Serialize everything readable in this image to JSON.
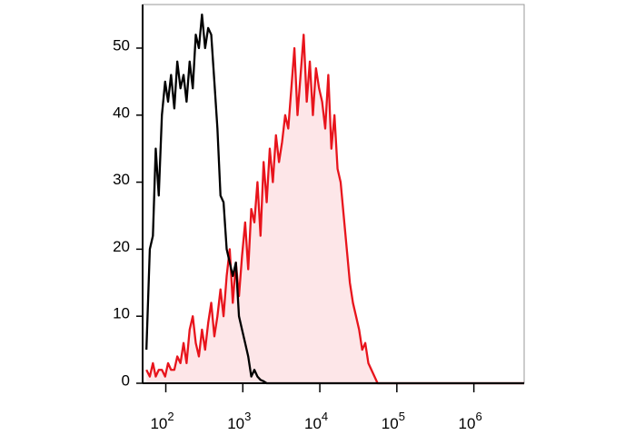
{
  "chart_data": {
    "type": "histogram-line",
    "log_x": true,
    "x": [
      56,
      62,
      68,
      74,
      81,
      89,
      98,
      107,
      117,
      129,
      141,
      155,
      170,
      186,
      204,
      224,
      245,
      269,
      295,
      324,
      355,
      389,
      427,
      468,
      513,
      562,
      617,
      676,
      741,
      813,
      891,
      977,
      1072,
      1175,
      1288,
      1413,
      1549,
      1698,
      1862,
      2042,
      2239,
      2455,
      2692,
      2951,
      3236,
      3548,
      3890,
      4266,
      4677,
      5129,
      5623,
      6166,
      6761,
      7413,
      8128,
      8913,
      9772,
      10715,
      11749,
      12882,
      14125,
      15488,
      16982,
      18621,
      20417,
      22387,
      24547,
      26915,
      29512,
      32359,
      35481,
      38905,
      42658,
      46774,
      51286,
      56234,
      61660,
      67608,
      74131,
      81283,
      89125,
      97724,
      4500000
    ],
    "series": [
      {
        "color": "#e8141c",
        "fill": "#fde6e8",
        "values": [
          2,
          1,
          3,
          1,
          2,
          2,
          1,
          3,
          2,
          2,
          4,
          3,
          6,
          3,
          8,
          10,
          6,
          4,
          8,
          5,
          9,
          12,
          7,
          10,
          14,
          10,
          16,
          20,
          12,
          18,
          13,
          19,
          24,
          17,
          26,
          24,
          30,
          22,
          33,
          27,
          35,
          30,
          37,
          33,
          36,
          40,
          38,
          44,
          50,
          40,
          46,
          52,
          42,
          48,
          40,
          47,
          44,
          42,
          38,
          46,
          35,
          40,
          32,
          30,
          25,
          20,
          15,
          12,
          10,
          8,
          5,
          6,
          3,
          2,
          1,
          0,
          0,
          0,
          0,
          0,
          0,
          0,
          0
        ]
      },
      {
        "color": "#000000",
        "values": [
          5,
          20,
          22,
          35,
          28,
          40,
          45,
          42,
          46,
          41,
          48,
          44,
          46,
          42,
          48,
          44,
          52,
          50,
          55,
          50,
          53,
          52,
          45,
          38,
          28,
          27,
          20,
          18,
          16,
          18,
          10,
          8,
          6,
          4,
          1,
          2,
          1,
          0.5,
          0.3,
          0,
          0,
          0,
          0,
          0,
          0,
          0,
          0,
          0,
          0,
          0,
          0,
          0,
          0,
          0,
          0,
          0,
          0,
          0,
          0,
          0,
          0,
          0,
          0,
          0,
          0,
          0,
          0,
          0,
          0,
          0,
          0,
          0,
          0,
          0,
          0,
          0,
          0,
          0,
          0,
          0,
          0,
          0,
          0
        ]
      }
    ],
    "xlim": [
      50,
      4500000
    ],
    "xticks": [
      {
        "value": 100,
        "label": "10",
        "exponent": "2"
      },
      {
        "value": 1000,
        "label": "10",
        "exponent": "3"
      },
      {
        "value": 10000,
        "label": "10",
        "exponent": "4"
      },
      {
        "value": 100000,
        "label": "10",
        "exponent": "5"
      },
      {
        "value": 1000000,
        "label": "10",
        "exponent": "6"
      }
    ],
    "ylim": [
      0,
      56.5
    ],
    "yticks": [
      0,
      10,
      20,
      30,
      40,
      50
    ]
  }
}
